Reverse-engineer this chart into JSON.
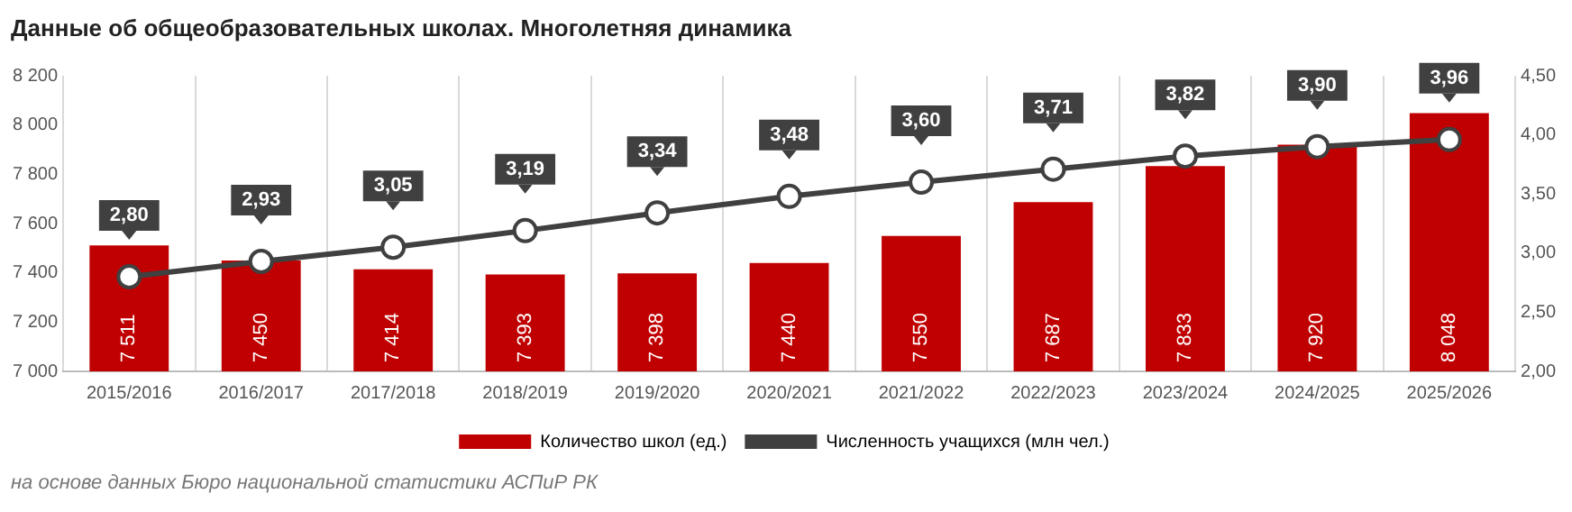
{
  "chart_data": {
    "type": "bar",
    "title": "Данные об общеобразовательных школах. Многолетняя динамика",
    "categories": [
      "2015/2016",
      "2016/2017",
      "2017/2018",
      "2018/2019",
      "2019/2020",
      "2020/2021",
      "2021/2022",
      "2022/2023",
      "2023/2024",
      "2024/2025",
      "2025/2026"
    ],
    "series": [
      {
        "name": "Количество школ (ед.)",
        "color": "#c00000",
        "values": [
          7511,
          7450,
          7414,
          7393,
          7398,
          7440,
          7550,
          7687,
          7833,
          7920,
          8048
        ],
        "value_labels": [
          "7 511",
          "7 450",
          "7 414",
          "7 393",
          "7 398",
          "7 440",
          "7 550",
          "7 687",
          "7 833",
          "7 920",
          "8 048"
        ]
      },
      {
        "name": "Численность учащихся (млн чел.)",
        "type": "line",
        "axis": "y2",
        "color": "#404040",
        "marker": "circle",
        "values": [
          2.8,
          2.93,
          3.05,
          3.19,
          3.34,
          3.48,
          3.6,
          3.71,
          3.82,
          3.9,
          3.96
        ],
        "value_labels": [
          "2,80",
          "2,93",
          "3,05",
          "3,19",
          "3,34",
          "3,48",
          "3,60",
          "3,71",
          "3,82",
          "3,90",
          "3,96"
        ]
      }
    ],
    "ylim": [
      7000,
      8200
    ],
    "yticks": [
      {
        "value": 7000,
        "label": "7 000"
      },
      {
        "value": 7200,
        "label": "7 200"
      },
      {
        "value": 7400,
        "label": "7 400"
      },
      {
        "value": 7600,
        "label": "7 600"
      },
      {
        "value": 7800,
        "label": "7 800"
      },
      {
        "value": 8000,
        "label": "8 000"
      },
      {
        "value": 8200,
        "label": "8 200"
      }
    ],
    "y2lim": [
      2,
      4.5
    ],
    "y2ticks": [
      {
        "value": 2,
        "label": "2,00"
      },
      {
        "value": 2.5,
        "label": "2,50"
      },
      {
        "value": 3,
        "label": "3,00"
      },
      {
        "value": 3.5,
        "label": "3,50"
      },
      {
        "value": 4,
        "label": "4,00"
      },
      {
        "value": 4.5,
        "label": "4,50"
      }
    ],
    "grid": "x",
    "legend": "bottom",
    "annotations": [
      "на основе данных Бюро национальной статистики АСПиР РК"
    ]
  }
}
